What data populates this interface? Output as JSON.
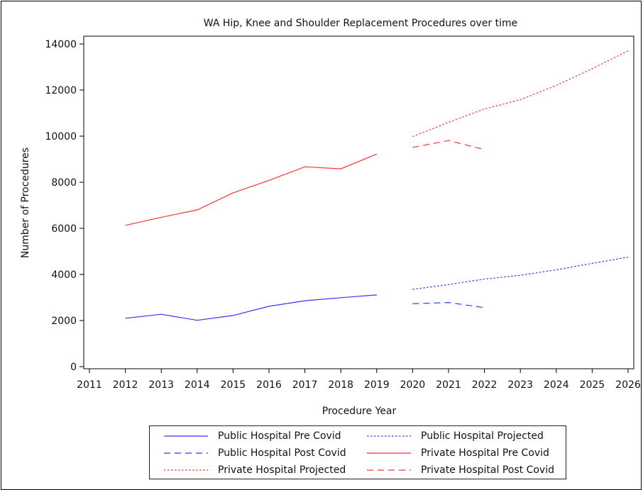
{
  "chart_data": {
    "type": "line",
    "title": "WA Hip, Knee and Shoulder Replacement Procedures over time",
    "xlabel": "Procedure Year",
    "ylabel": "Number of Procedures",
    "xlim": [
      2011,
      2026
    ],
    "ylim": [
      0,
      14000
    ],
    "x_ticks": [
      2011,
      2012,
      2013,
      2014,
      2015,
      2016,
      2017,
      2018,
      2019,
      2020,
      2021,
      2022,
      2023,
      2024,
      2025,
      2026
    ],
    "y_ticks": [
      0,
      2000,
      4000,
      6000,
      8000,
      10000,
      12000,
      14000
    ],
    "grid": false,
    "legend_position": "bottom",
    "series": [
      {
        "name": "Public Hospital Pre Covid",
        "color": "#3333ff",
        "style": "solid",
        "x": [
          2012,
          2013,
          2014,
          2015,
          2016,
          2017,
          2018,
          2019
        ],
        "y": [
          2100,
          2270,
          2010,
          2220,
          2620,
          2860,
          2990,
          3110
        ]
      },
      {
        "name": "Public Hospital Projected",
        "color": "#3333ff",
        "style": "dotted",
        "x": [
          2020,
          2021,
          2022,
          2023,
          2024,
          2025,
          2026
        ],
        "y": [
          3350,
          3560,
          3800,
          3960,
          4200,
          4480,
          4750
        ]
      },
      {
        "name": "Public Hospital Post Covid",
        "color": "#3333ff",
        "style": "dashed",
        "x": [
          2020,
          2021,
          2022
        ],
        "y": [
          2730,
          2780,
          2560
        ]
      },
      {
        "name": "Private Hospital Pre Covid",
        "color": "#ff3333",
        "style": "solid",
        "x": [
          2012,
          2013,
          2014,
          2015,
          2016,
          2017,
          2018,
          2019
        ],
        "y": [
          6130,
          6480,
          6800,
          7540,
          8080,
          8670,
          8580,
          9220
        ]
      },
      {
        "name": "Private Hospital Projected",
        "color": "#ff3333",
        "style": "dotted",
        "x": [
          2020,
          2021,
          2022,
          2023,
          2024,
          2025,
          2026
        ],
        "y": [
          9980,
          10600,
          11180,
          11580,
          12200,
          12930,
          13700
        ]
      },
      {
        "name": "Private Hospital Post Covid",
        "color": "#ff3333",
        "style": "dashed",
        "x": [
          2020,
          2021,
          2022
        ],
        "y": [
          9510,
          9810,
          9420
        ]
      }
    ],
    "legend_order": [
      "Public Hospital Pre Covid",
      "Public Hospital Projected",
      "Public Hospital Post Covid",
      "Private Hospital Pre Covid",
      "Private Hospital Projected",
      "Private Hospital Post Covid"
    ]
  }
}
